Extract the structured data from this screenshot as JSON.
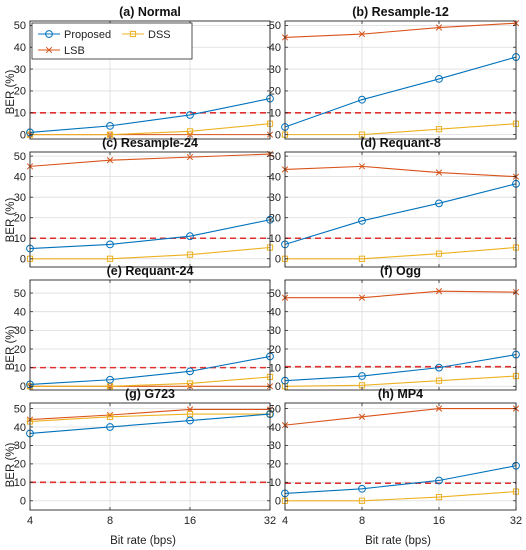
{
  "figure": {
    "ylabel": "BER (%)",
    "xlabel": "Bit rate (bps)",
    "legend": [
      {
        "name": "Proposed",
        "color": "#0072BD",
        "marker": "circle"
      },
      {
        "name": "DSS",
        "color": "#EDB120",
        "marker": "square"
      },
      {
        "name": "LSB",
        "color": "#D95319",
        "marker": "x"
      }
    ],
    "threshold_color": "#e03030"
  },
  "chart_data": [
    {
      "type": "line",
      "title": "(a) Normal",
      "x": [
        4,
        8,
        16,
        32
      ],
      "xticks": [
        "4",
        "8",
        "16",
        "32"
      ],
      "yticks": [
        "0",
        "10",
        "20",
        "30",
        "40",
        "50"
      ],
      "ylim": [
        -2,
        52
      ],
      "threshold": 10,
      "grid": true,
      "legend": "top-left",
      "series": [
        {
          "name": "Proposed",
          "values": [
            1,
            4,
            9,
            16.5
          ]
        },
        {
          "name": "DSS",
          "values": [
            0,
            0,
            1.5,
            5
          ]
        },
        {
          "name": "LSB",
          "values": [
            0,
            0,
            0,
            0
          ]
        }
      ]
    },
    {
      "type": "line",
      "title": "(b) Resample-12",
      "x": [
        4,
        8,
        16,
        32
      ],
      "xticks": [
        "4",
        "8",
        "16",
        "32"
      ],
      "yticks": [
        "0",
        "10",
        "20",
        "30",
        "40",
        "50"
      ],
      "ylim": [
        -2,
        52
      ],
      "threshold": 10,
      "grid": true,
      "series": [
        {
          "name": "Proposed",
          "values": [
            3.5,
            16,
            25.5,
            35.5
          ]
        },
        {
          "name": "DSS",
          "values": [
            0,
            0,
            2.5,
            5
          ]
        },
        {
          "name": "LSB",
          "values": [
            44.5,
            46,
            49,
            51
          ]
        }
      ]
    },
    {
      "type": "line",
      "title": "(c) Resample-24",
      "x": [
        4,
        8,
        16,
        32
      ],
      "xticks": [
        "4",
        "8",
        "16",
        "32"
      ],
      "yticks": [
        "0",
        "10",
        "20",
        "30",
        "40",
        "50"
      ],
      "ylim": [
        -4,
        52
      ],
      "threshold": 10,
      "grid": true,
      "series": [
        {
          "name": "Proposed",
          "values": [
            5,
            7,
            11,
            19
          ]
        },
        {
          "name": "DSS",
          "values": [
            0,
            0,
            2,
            5.5
          ]
        },
        {
          "name": "LSB",
          "values": [
            45,
            48,
            49.5,
            51
          ]
        }
      ]
    },
    {
      "type": "line",
      "title": "(d) Requant-8",
      "x": [
        4,
        8,
        16,
        32
      ],
      "xticks": [
        "4",
        "8",
        "16",
        "32"
      ],
      "yticks": [
        "0",
        "10",
        "20",
        "30",
        "40",
        "50"
      ],
      "ylim": [
        -4,
        52
      ],
      "threshold": 10,
      "grid": true,
      "series": [
        {
          "name": "Proposed",
          "values": [
            7,
            18.5,
            27,
            36.5
          ]
        },
        {
          "name": "DSS",
          "values": [
            0,
            0,
            2.5,
            5.5
          ]
        },
        {
          "name": "LSB",
          "values": [
            43.5,
            45,
            42,
            40
          ]
        }
      ]
    },
    {
      "type": "line",
      "title": "(e) Requant-24",
      "x": [
        4,
        8,
        16,
        32
      ],
      "xticks": [
        "4",
        "8",
        "16",
        "32"
      ],
      "yticks": [
        "0",
        "10",
        "20",
        "30",
        "40",
        "50"
      ],
      "ylim": [
        -2,
        57
      ],
      "threshold": 10,
      "grid": true,
      "series": [
        {
          "name": "Proposed",
          "values": [
            1,
            3.5,
            8,
            16
          ]
        },
        {
          "name": "DSS",
          "values": [
            0,
            0,
            1.5,
            5
          ]
        },
        {
          "name": "LSB",
          "values": [
            0,
            0,
            0,
            0
          ]
        }
      ]
    },
    {
      "type": "line",
      "title": "(f) Ogg",
      "x": [
        4,
        8,
        16,
        32
      ],
      "xticks": [
        "4",
        "8",
        "16",
        "32"
      ],
      "yticks": [
        "0",
        "10",
        "20",
        "30",
        "40",
        "50"
      ],
      "ylim": [
        -2,
        57
      ],
      "threshold": 10.5,
      "grid": true,
      "series": [
        {
          "name": "Proposed",
          "values": [
            3,
            5.5,
            10,
            17
          ]
        },
        {
          "name": "DSS",
          "values": [
            0,
            0.5,
            3,
            5.5
          ]
        },
        {
          "name": "LSB",
          "values": [
            47.5,
            47.5,
            51,
            50.5
          ]
        }
      ]
    },
    {
      "type": "line",
      "title": "(g) G723",
      "x": [
        4,
        8,
        16,
        32
      ],
      "xticks": [
        "4",
        "8",
        "16",
        "32"
      ],
      "yticks": [
        "0",
        "10",
        "20",
        "30",
        "40",
        "50"
      ],
      "ylim": [
        -5,
        53
      ],
      "threshold": 10,
      "grid": true,
      "series": [
        {
          "name": "Proposed",
          "values": [
            36.5,
            40,
            43.5,
            47
          ]
        },
        {
          "name": "DSS",
          "values": [
            43,
            45.5,
            47,
            47
          ]
        },
        {
          "name": "LSB",
          "values": [
            44,
            46.5,
            49.5,
            49.5
          ]
        }
      ]
    },
    {
      "type": "line",
      "title": "(h) MP4",
      "x": [
        4,
        8,
        16,
        32
      ],
      "xticks": [
        "4",
        "8",
        "16",
        "32"
      ],
      "yticks": [
        "0",
        "10",
        "20",
        "30",
        "40",
        "50"
      ],
      "ylim": [
        -5,
        53
      ],
      "threshold": 9.5,
      "grid": true,
      "series": [
        {
          "name": "Proposed",
          "values": [
            4,
            6.5,
            11,
            19
          ]
        },
        {
          "name": "DSS",
          "values": [
            0,
            0,
            2,
            5
          ]
        },
        {
          "name": "LSB",
          "values": [
            41,
            45.5,
            50,
            50
          ]
        }
      ]
    }
  ]
}
